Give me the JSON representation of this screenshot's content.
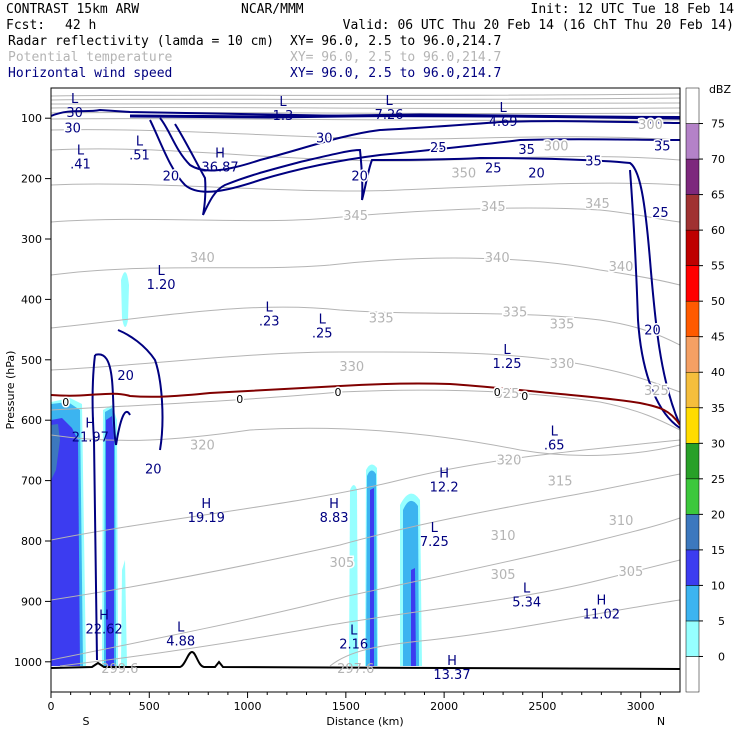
{
  "header": {
    "model": "CONTRAST 15km ARW",
    "org": "NCAR/MMM",
    "init": "Init: 12 UTC Tue 18 Feb 14",
    "fcst_label": "Fcst:",
    "fcst_value": "42 h",
    "valid": "Valid: 06 UTC Thu 20 Feb 14 (16 ChT Thu 20 Feb 14)",
    "fields": [
      {
        "name": "Radar reflectivity (lamda = 10 cm)",
        "xy": "XY=  96.0,  2.5 to  96.0,214.7",
        "color": "#000000"
      },
      {
        "name": "Potential temperature",
        "xy": "XY=  96.0,  2.5 to  96.0,214.7",
        "color": "#b4b4b4"
      },
      {
        "name": "Horizontal wind speed",
        "xy": "XY=  96.0,  2.5 to  96.0,214.7",
        "color": "#000080"
      }
    ]
  },
  "chart_data": {
    "type": "cross-section",
    "title": "Radar reflectivity, potential temperature, horizontal wind speed cross-section",
    "xlabel": "Distance (km)",
    "ylabel": "Pressure (hPa)",
    "xlim": [
      0,
      3200
    ],
    "ylim": [
      1050,
      50
    ],
    "x_ticks": [
      "0",
      "500",
      "1000",
      "1500",
      "2000",
      "2500",
      "3000"
    ],
    "y_ticks": [
      "100",
      "200",
      "300",
      "400",
      "500",
      "600",
      "700",
      "800",
      "900",
      "1000"
    ],
    "x_end_labels": {
      "left": "S",
      "right": "N"
    },
    "colorbar": {
      "unit": "dBZ",
      "levels": [
        "0",
        "5",
        "10",
        "15",
        "20",
        "25",
        "30",
        "35",
        "40",
        "45",
        "50",
        "55",
        "60",
        "65",
        "70",
        "75"
      ],
      "colors": [
        "#ffffff",
        "#96ffff",
        "#3cb4f0",
        "#3c3cf0",
        "#3c78be",
        "#3cc83c",
        "#28a028",
        "#ffdc00",
        "#f5be3c",
        "#f5a064",
        "#ff5a00",
        "#ff0000",
        "#be0000",
        "#a03232",
        "#7d287d",
        "#b482c8",
        "#ffffff"
      ]
    },
    "theta_labels": [
      {
        "text": "350",
        "x": 2100,
        "p": 190
      },
      {
        "text": "345",
        "x": 1550,
        "p": 260
      },
      {
        "text": "345",
        "x": 2250,
        "p": 245
      },
      {
        "text": "345",
        "x": 2780,
        "p": 240
      },
      {
        "text": "340",
        "x": 770,
        "p": 330
      },
      {
        "text": "340",
        "x": 2270,
        "p": 330
      },
      {
        "text": "340",
        "x": 2900,
        "p": 345
      },
      {
        "text": "335",
        "x": 1680,
        "p": 430
      },
      {
        "text": "335",
        "x": 2360,
        "p": 420
      },
      {
        "text": "335",
        "x": 2600,
        "p": 440
      },
      {
        "text": "330",
        "x": 1530,
        "p": 510
      },
      {
        "text": "330",
        "x": 2600,
        "p": 505
      },
      {
        "text": "325",
        "x": 2320,
        "p": 555
      },
      {
        "text": "325",
        "x": 3080,
        "p": 550
      },
      {
        "text": "320",
        "x": 770,
        "p": 640
      },
      {
        "text": "320",
        "x": 2330,
        "p": 665
      },
      {
        "text": "315",
        "x": 2590,
        "p": 700
      },
      {
        "text": "310",
        "x": 2300,
        "p": 790
      },
      {
        "text": "310",
        "x": 2900,
        "p": 765
      },
      {
        "text": "305",
        "x": 1480,
        "p": 835
      },
      {
        "text": "305",
        "x": 2300,
        "p": 855
      },
      {
        "text": "305",
        "x": 2950,
        "p": 850
      },
      {
        "text": "300",
        "x": 2570,
        "p": 145
      },
      {
        "text": "300",
        "x": 3050,
        "p": 110
      }
    ],
    "wind_labels": [
      {
        "text": "30",
        "x": 110,
        "p": 115
      },
      {
        "text": "30",
        "x": 1390,
        "p": 132
      },
      {
        "text": "25",
        "x": 1970,
        "p": 148
      },
      {
        "text": "25",
        "x": 2250,
        "p": 182
      },
      {
        "text": "35",
        "x": 2420,
        "p": 151
      },
      {
        "text": "35",
        "x": 2760,
        "p": 170
      },
      {
        "text": "35",
        "x": 3110,
        "p": 145
      },
      {
        "text": "20",
        "x": 2470,
        "p": 190
      },
      {
        "text": "25",
        "x": 3100,
        "p": 255
      },
      {
        "text": "20",
        "x": 610,
        "p": 195
      },
      {
        "text": "20",
        "x": 1570,
        "p": 195
      },
      {
        "text": "20",
        "x": 3060,
        "p": 450
      },
      {
        "text": "20",
        "x": 380,
        "p": 525
      },
      {
        "text": "20",
        "x": 520,
        "p": 680
      }
    ],
    "zero_labels": [
      {
        "text": "0",
        "x": 75,
        "p": 570
      },
      {
        "text": "0",
        "x": 960,
        "p": 565
      },
      {
        "text": "0",
        "x": 1460,
        "p": 553
      },
      {
        "text": "0",
        "x": 2270,
        "p": 553
      },
      {
        "text": "0",
        "x": 2410,
        "p": 560
      }
    ],
    "extrema": [
      {
        "type": "L",
        "value": "30",
        "x": 120,
        "p": 75
      },
      {
        "type": "L",
        "value": "1.3",
        "x": 1180,
        "p": 80
      },
      {
        "type": "L",
        "value": "7.26",
        "x": 1720,
        "p": 78
      },
      {
        "type": "L",
        "value": "4.69",
        "x": 2300,
        "p": 90
      },
      {
        "type": "L",
        "value": ".41",
        "x": 150,
        "p": 160
      },
      {
        "type": "L",
        "value": ".51",
        "x": 450,
        "p": 145
      },
      {
        "type": "H",
        "value": "36.87",
        "x": 860,
        "p": 165
      },
      {
        "type": "L",
        "value": "1.20",
        "x": 560,
        "p": 360
      },
      {
        "type": "L",
        "value": ".23",
        "x": 1110,
        "p": 420
      },
      {
        "type": "L",
        "value": ".25",
        "x": 1380,
        "p": 440
      },
      {
        "type": "L",
        "value": "1.25",
        "x": 2320,
        "p": 490
      },
      {
        "type": "H",
        "value": "21.97",
        "x": 200,
        "p": 612
      },
      {
        "type": "L",
        "value": ".65",
        "x": 2560,
        "p": 625
      },
      {
        "type": "H",
        "value": "12.2",
        "x": 2000,
        "p": 695
      },
      {
        "type": "H",
        "value": "19.19",
        "x": 790,
        "p": 745
      },
      {
        "type": "H",
        "value": "8.83",
        "x": 1440,
        "p": 745
      },
      {
        "type": "L",
        "value": "7.25",
        "x": 1950,
        "p": 785
      },
      {
        "type": "L",
        "value": "5.34",
        "x": 2420,
        "p": 885
      },
      {
        "type": "H",
        "value": "11.02",
        "x": 2800,
        "p": 905
      },
      {
        "type": "H",
        "value": "22.62",
        "x": 270,
        "p": 930
      },
      {
        "type": "L",
        "value": "4.88",
        "x": 660,
        "p": 950
      },
      {
        "type": "L",
        "value": "2.16",
        "x": 1540,
        "p": 955
      },
      {
        "type": "H",
        "value": "13.37",
        "x": 2040,
        "p": 1005
      }
    ],
    "surface_labels": [
      {
        "text": "299.6",
        "x": 350,
        "p": 1010
      },
      {
        "text": "297.6",
        "x": 1550,
        "p": 1010
      }
    ]
  }
}
